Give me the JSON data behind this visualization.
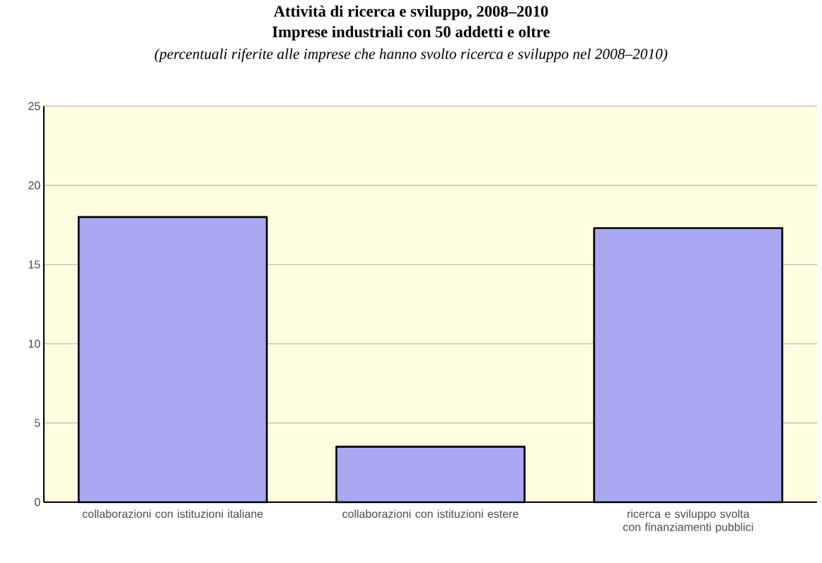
{
  "chart_data": {
    "type": "bar",
    "title": "Attività di ricerca e sviluppo, 2008–2010",
    "subtitle": "Imprese industriali con 50 addetti e oltre",
    "annotations": [
      "(percentuali riferite alle imprese che hanno svolto ricerca e sviluppo nel 2008–2010)"
    ],
    "categories": [
      "collaborazioni con istituzioni italiane",
      "collaborazioni con istituzioni estere",
      "ricerca e sviluppo svolta con finanziamenti pubblici"
    ],
    "values": [
      18.0,
      3.5,
      17.3
    ],
    "color": "#a8a8f2",
    "ylim": [
      0,
      25
    ],
    "yticks": [
      0,
      5,
      10,
      15,
      20,
      25
    ],
    "grid": "y"
  }
}
